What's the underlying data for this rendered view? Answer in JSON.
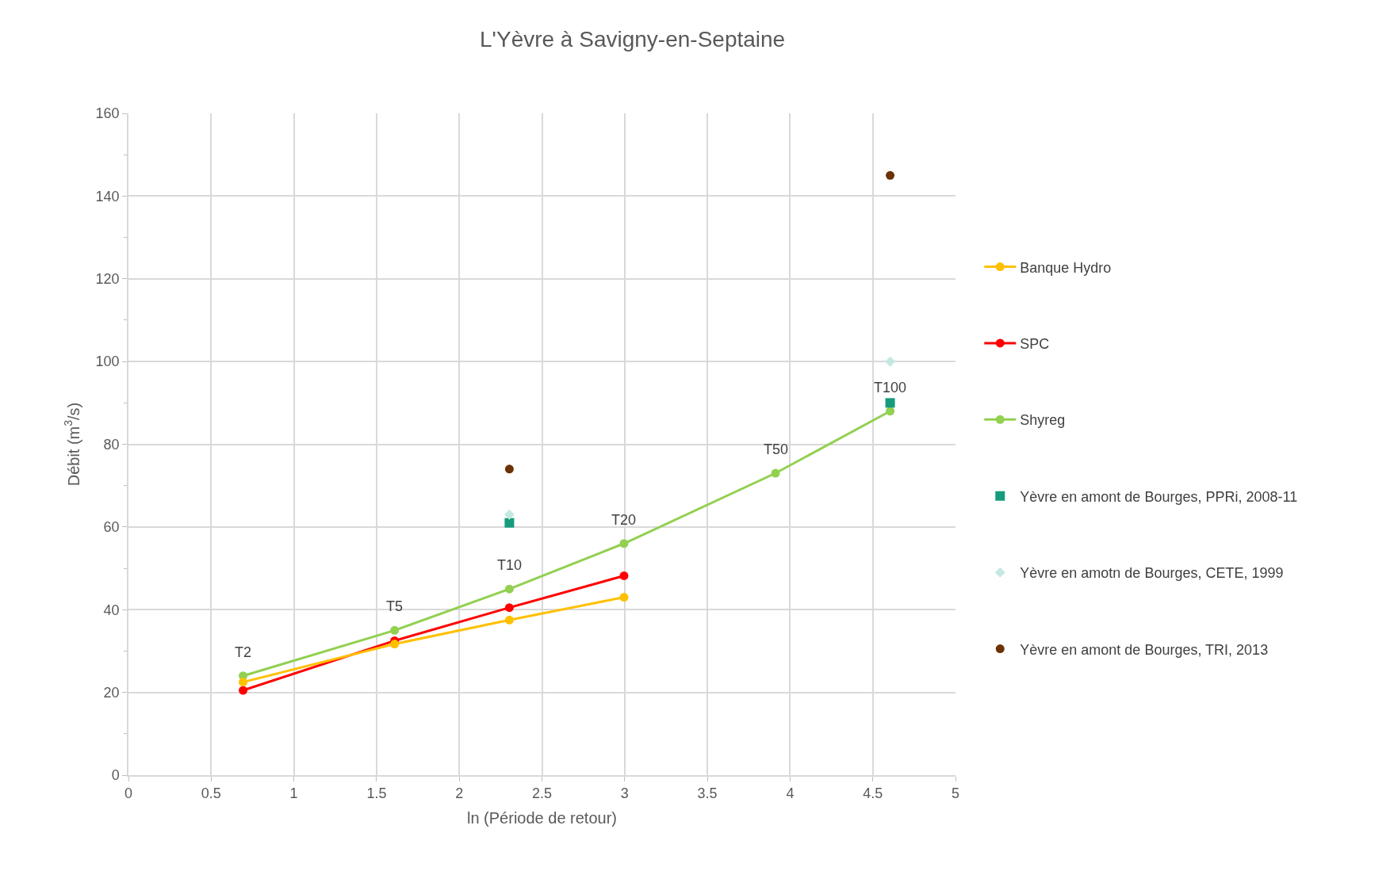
{
  "chart_data": {
    "type": "line",
    "title": "L'Yèvre à Savigny-en-Septaine",
    "xlabel": "ln (Période de retour)",
    "ylabel": "Débit (m$^{3}$/s)",
    "xlim": [
      0,
      5
    ],
    "xticks": [
      0,
      0.5,
      1,
      1.5,
      2,
      2.5,
      3,
      3.5,
      4,
      4.5,
      5
    ],
    "ylim": [
      0,
      160
    ],
    "yticks": [
      0,
      20,
      40,
      60,
      80,
      100,
      120,
      140,
      160
    ],
    "grid": true,
    "legend": "right",
    "series": [
      {
        "name": "Banque Hydro",
        "marker": "circle",
        "color": "#ffc000",
        "x": [
          0.693,
          1.609,
          2.303,
          2.996
        ],
        "values": [
          22.5,
          31.7,
          37.5,
          43
        ]
      },
      {
        "name": "SPC",
        "marker": "circle",
        "color": "#ff0000",
        "x": [
          0.693,
          1.609,
          2.303,
          2.996
        ],
        "values": [
          20.5,
          32.5,
          40.5,
          48.2
        ]
      },
      {
        "name": "Shyreg",
        "marker": "circle",
        "color": "#92d050",
        "x": [
          0.693,
          1.609,
          2.303,
          2.996,
          3.912,
          4.605
        ],
        "values": [
          24,
          35,
          45,
          56,
          73,
          88
        ]
      },
      {
        "name": "Yèvre en amont de Bourges, PPRi, 2008-11",
        "type": "scatter",
        "marker": "square",
        "color": "#169b7c",
        "x": [
          2.303,
          4.605
        ],
        "values": [
          61,
          90
        ]
      },
      {
        "name": "Yèvre en amotn de Bourges, CETE, 1999",
        "type": "scatter",
        "marker": "diamond",
        "color": "#c5e8e2",
        "x": [
          2.303,
          4.605
        ],
        "values": [
          63,
          100
        ]
      },
      {
        "name": "Yèvre en amont de Bourges, TRI, 2013",
        "type": "scatter",
        "marker": "circle",
        "color": "#6b3205",
        "x": [
          2.303,
          4.605
        ],
        "values": [
          74,
          145
        ]
      }
    ],
    "annotations": [
      {
        "text": "T2",
        "x": 0.693,
        "y": 24
      },
      {
        "text": "T5",
        "x": 1.609,
        "y": 35
      },
      {
        "text": "T10",
        "x": 2.303,
        "y": 45
      },
      {
        "text": "T20",
        "x": 2.996,
        "y": 56
      },
      {
        "text": "T50",
        "x": 3.912,
        "y": 73
      },
      {
        "text": "T100",
        "x": 4.605,
        "y": 88
      }
    ]
  }
}
